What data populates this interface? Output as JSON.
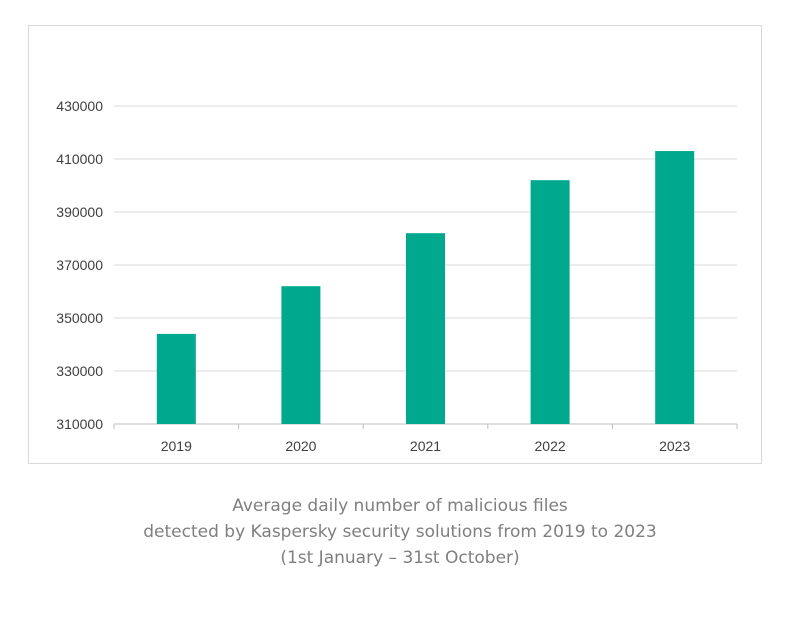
{
  "chart_data": {
    "type": "bar",
    "categories": [
      "2019",
      "2020",
      "2021",
      "2022",
      "2023"
    ],
    "values": [
      344000,
      362000,
      382000,
      402000,
      413000
    ],
    "ylim": [
      310000,
      430000
    ],
    "yticks": [
      310000,
      330000,
      350000,
      370000,
      390000,
      410000,
      430000
    ],
    "grid": true,
    "legend": "none",
    "bar_color": "#00a88e",
    "gridline_color": "#d9d9d9"
  },
  "caption": {
    "line1": "Average daily number of malicious files",
    "line2": "detected by Kaspersky security solutions from 2019 to 2023",
    "line3": "(1st January – 31st October)"
  }
}
